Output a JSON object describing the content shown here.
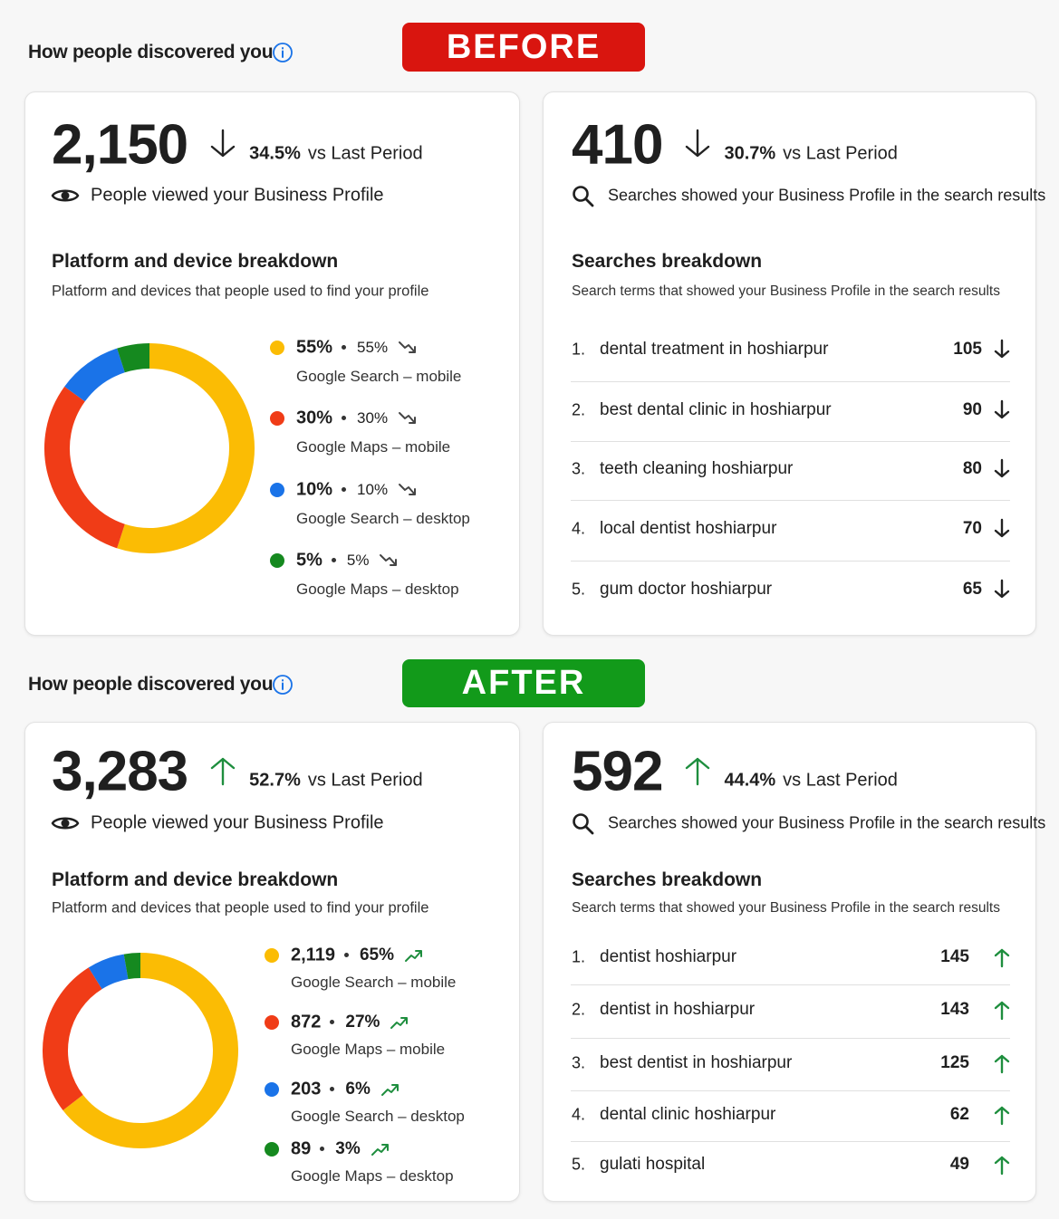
{
  "sections": [
    {
      "heading": "How people discovered you",
      "badge": "BEFORE",
      "badge_color": "#d9150f",
      "trend": "down",
      "trend_color": "#222222",
      "views": {
        "total": "2,150",
        "change": "34.5%",
        "suffix": "vs Last Period",
        "label": "People viewed your Business Profile"
      },
      "platform": {
        "title": "Platform and device breakdown",
        "subtitle": "Platform and devices that people used to find your profile",
        "chart": {
          "type": "pie",
          "categories": [
            "Google Search – mobile",
            "Google Maps – mobile",
            "Google Search – desktop",
            "Google Maps – desktop"
          ],
          "values": [
            55,
            30,
            10,
            5
          ],
          "value_labels": [
            "55%",
            "30%",
            "10%",
            "5%"
          ],
          "shares": [
            "55%",
            "30%",
            "10%",
            "5%"
          ],
          "colors": [
            "#fbbc04",
            "#f03c17",
            "#1a73e8",
            "#15891f"
          ]
        }
      },
      "searches": {
        "total": "410",
        "change": "30.7%",
        "suffix": "vs Last Period",
        "label": "Searches showed your Business Profile in the search results",
        "title": "Searches breakdown",
        "subtitle": "Search terms that showed your Business Profile in the search results",
        "terms": [
          {
            "rank": "1.",
            "term": "dental treatment in hoshiarpur",
            "count": "105"
          },
          {
            "rank": "2.",
            "term": "best dental clinic in hoshiarpur",
            "count": "90"
          },
          {
            "rank": "3.",
            "term": "teeth cleaning hoshiarpur",
            "count": "80"
          },
          {
            "rank": "4.",
            "term": "local dentist hoshiarpur",
            "count": "70"
          },
          {
            "rank": "5.",
            "term": "gum doctor hoshiarpur",
            "count": "65"
          }
        ]
      }
    },
    {
      "heading": "How people discovered you",
      "badge": "AFTER",
      "badge_color": "#129a1a",
      "trend": "up",
      "trend_color": "#1e8e3e",
      "views": {
        "total": "3,283",
        "change": "52.7%",
        "suffix": "vs Last Period",
        "label": "People viewed your Business Profile"
      },
      "platform": {
        "title": "Platform and device breakdown",
        "subtitle": "Platform and devices that people used to find your profile",
        "chart": {
          "type": "pie",
          "categories": [
            "Google Search – mobile",
            "Google Maps – mobile",
            "Google Search – desktop",
            "Google Maps – desktop"
          ],
          "values": [
            2119,
            872,
            203,
            89
          ],
          "value_labels": [
            "2,119",
            "872",
            "203",
            "89"
          ],
          "shares": [
            "65%",
            "27%",
            "6%",
            "3%"
          ],
          "colors": [
            "#fbbc04",
            "#f03c17",
            "#1a73e8",
            "#15891f"
          ]
        }
      },
      "searches": {
        "total": "592",
        "change": "44.4%",
        "suffix": "vs Last Period",
        "label": "Searches showed your Business Profile in the search results",
        "title": "Searches breakdown",
        "subtitle": "Search terms that showed your Business Profile in the search results",
        "terms": [
          {
            "rank": "1.",
            "term": "dentist hoshiarpur",
            "count": "145"
          },
          {
            "rank": "2.",
            "term": "dentist in hoshiarpur",
            "count": "143"
          },
          {
            "rank": "3.",
            "term": "best dentist in hoshiarpur",
            "count": "125"
          },
          {
            "rank": "4.",
            "term": "dental clinic hoshiarpur",
            "count": "62"
          },
          {
            "rank": "5.",
            "term": "gulati hospital",
            "count": "49"
          }
        ]
      }
    }
  ]
}
